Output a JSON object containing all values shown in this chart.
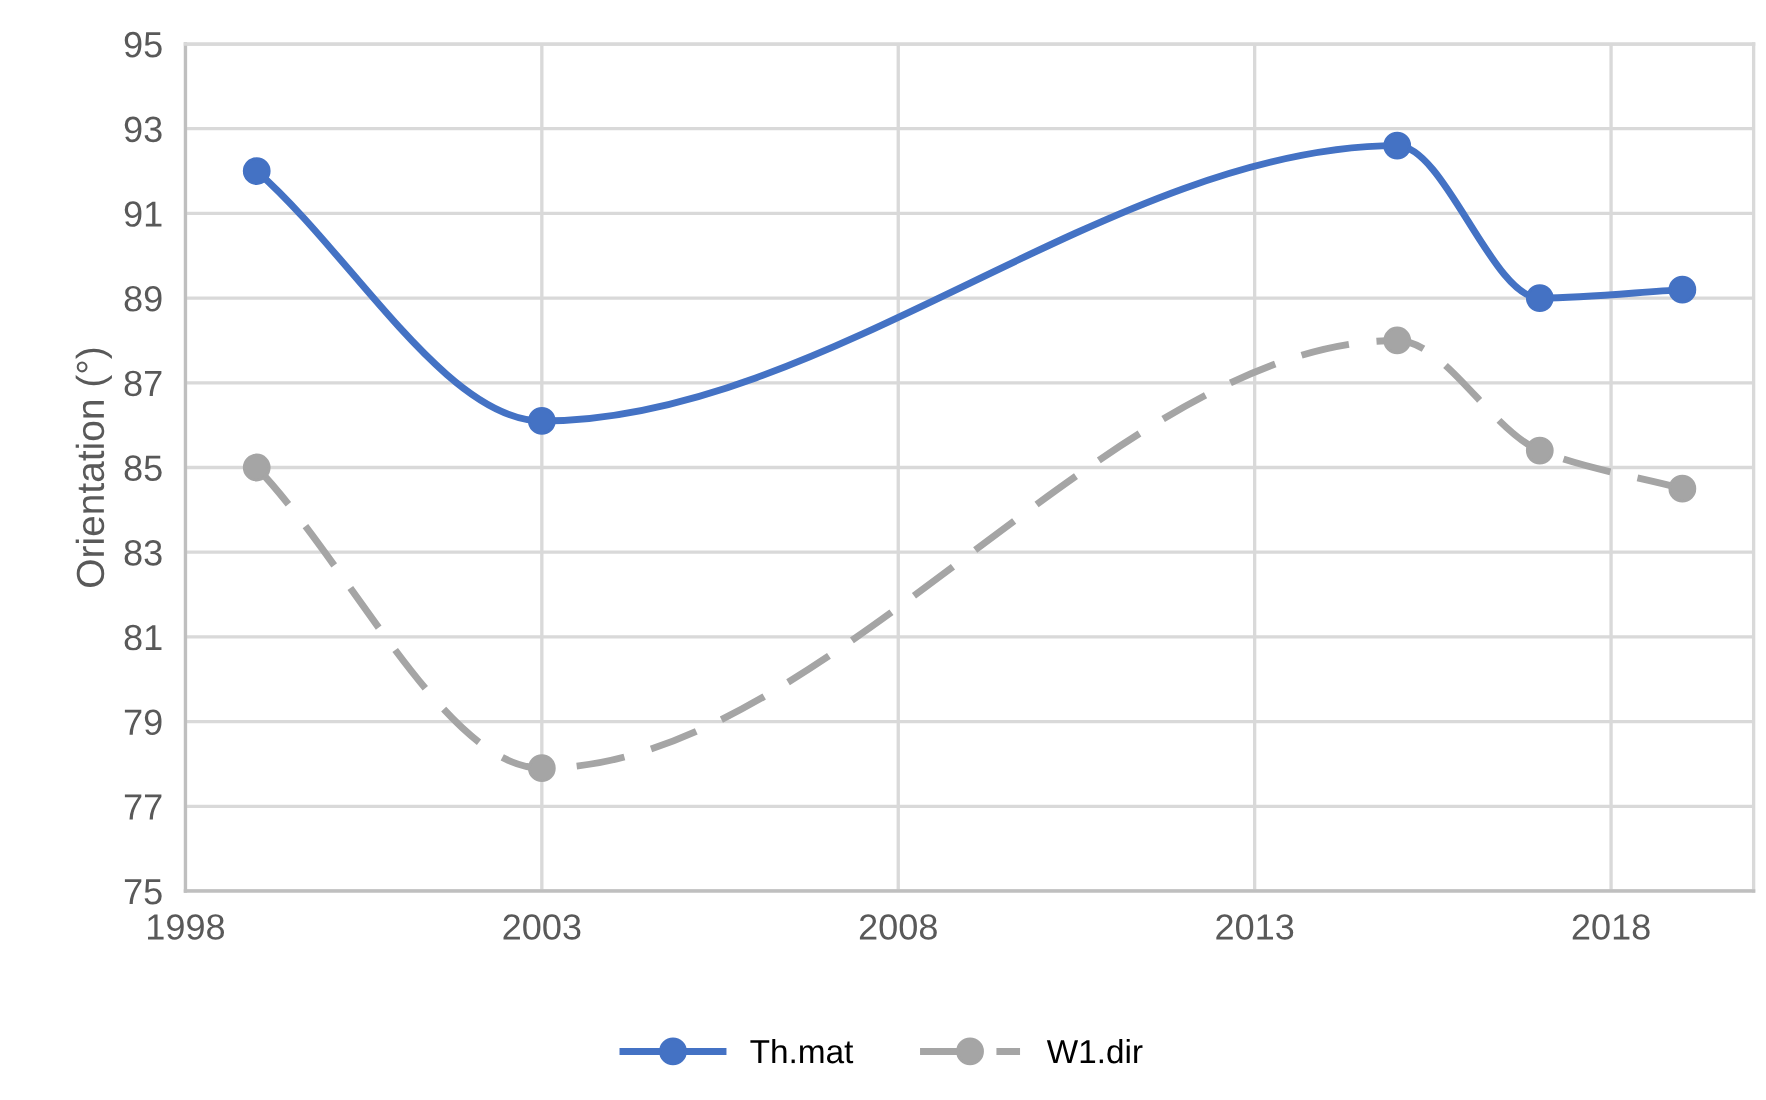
{
  "chart_data": {
    "type": "line",
    "ylabel": "Orientation (°)",
    "x": [
      1999,
      2003,
      2015,
      2017,
      2019
    ],
    "series": [
      {
        "name": "Th.mat",
        "color": "#4472c4",
        "values": [
          92.0,
          86.1,
          92.6,
          89.0,
          89.2
        ],
        "line_style": "solid"
      },
      {
        "name": "W1.dir",
        "color": "#a5a5a5",
        "values": [
          85.0,
          77.9,
          88.0,
          85.4,
          84.5
        ],
        "line_style": "dashed"
      }
    ],
    "xlim": [
      1998,
      2020
    ],
    "xticks": [
      1998,
      2003,
      2008,
      2013,
      2018
    ],
    "ylim": [
      75,
      95
    ],
    "yticks": [
      75,
      77,
      79,
      81,
      83,
      85,
      87,
      89,
      91,
      93,
      95
    ],
    "grid": true,
    "legend": "bottom",
    "marker": "circle"
  }
}
